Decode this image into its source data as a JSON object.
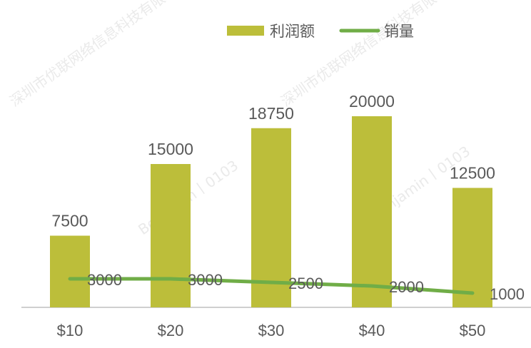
{
  "chart_data": {
    "type": "bar",
    "categories": [
      "$10",
      "$20",
      "$30",
      "$40",
      "$50"
    ],
    "series": [
      {
        "name": "利润额",
        "type": "bar",
        "values": [
          7500,
          15000,
          18750,
          20000,
          12500
        ],
        "color": "#bcbe3a"
      },
      {
        "name": "销量",
        "type": "line",
        "values": [
          3000,
          3000,
          2500,
          2000,
          1000
        ],
        "color": "#70ad47"
      }
    ],
    "title": "",
    "xlabel": "",
    "ylabel": "",
    "grid": false,
    "legend": "top-right"
  },
  "watermarks": [
    "深圳市优联网络信息科技有限公司",
    "Benjamin丨0103",
    "深圳市优联网络信息科技有限公司",
    "Benjamin丨0103"
  ]
}
